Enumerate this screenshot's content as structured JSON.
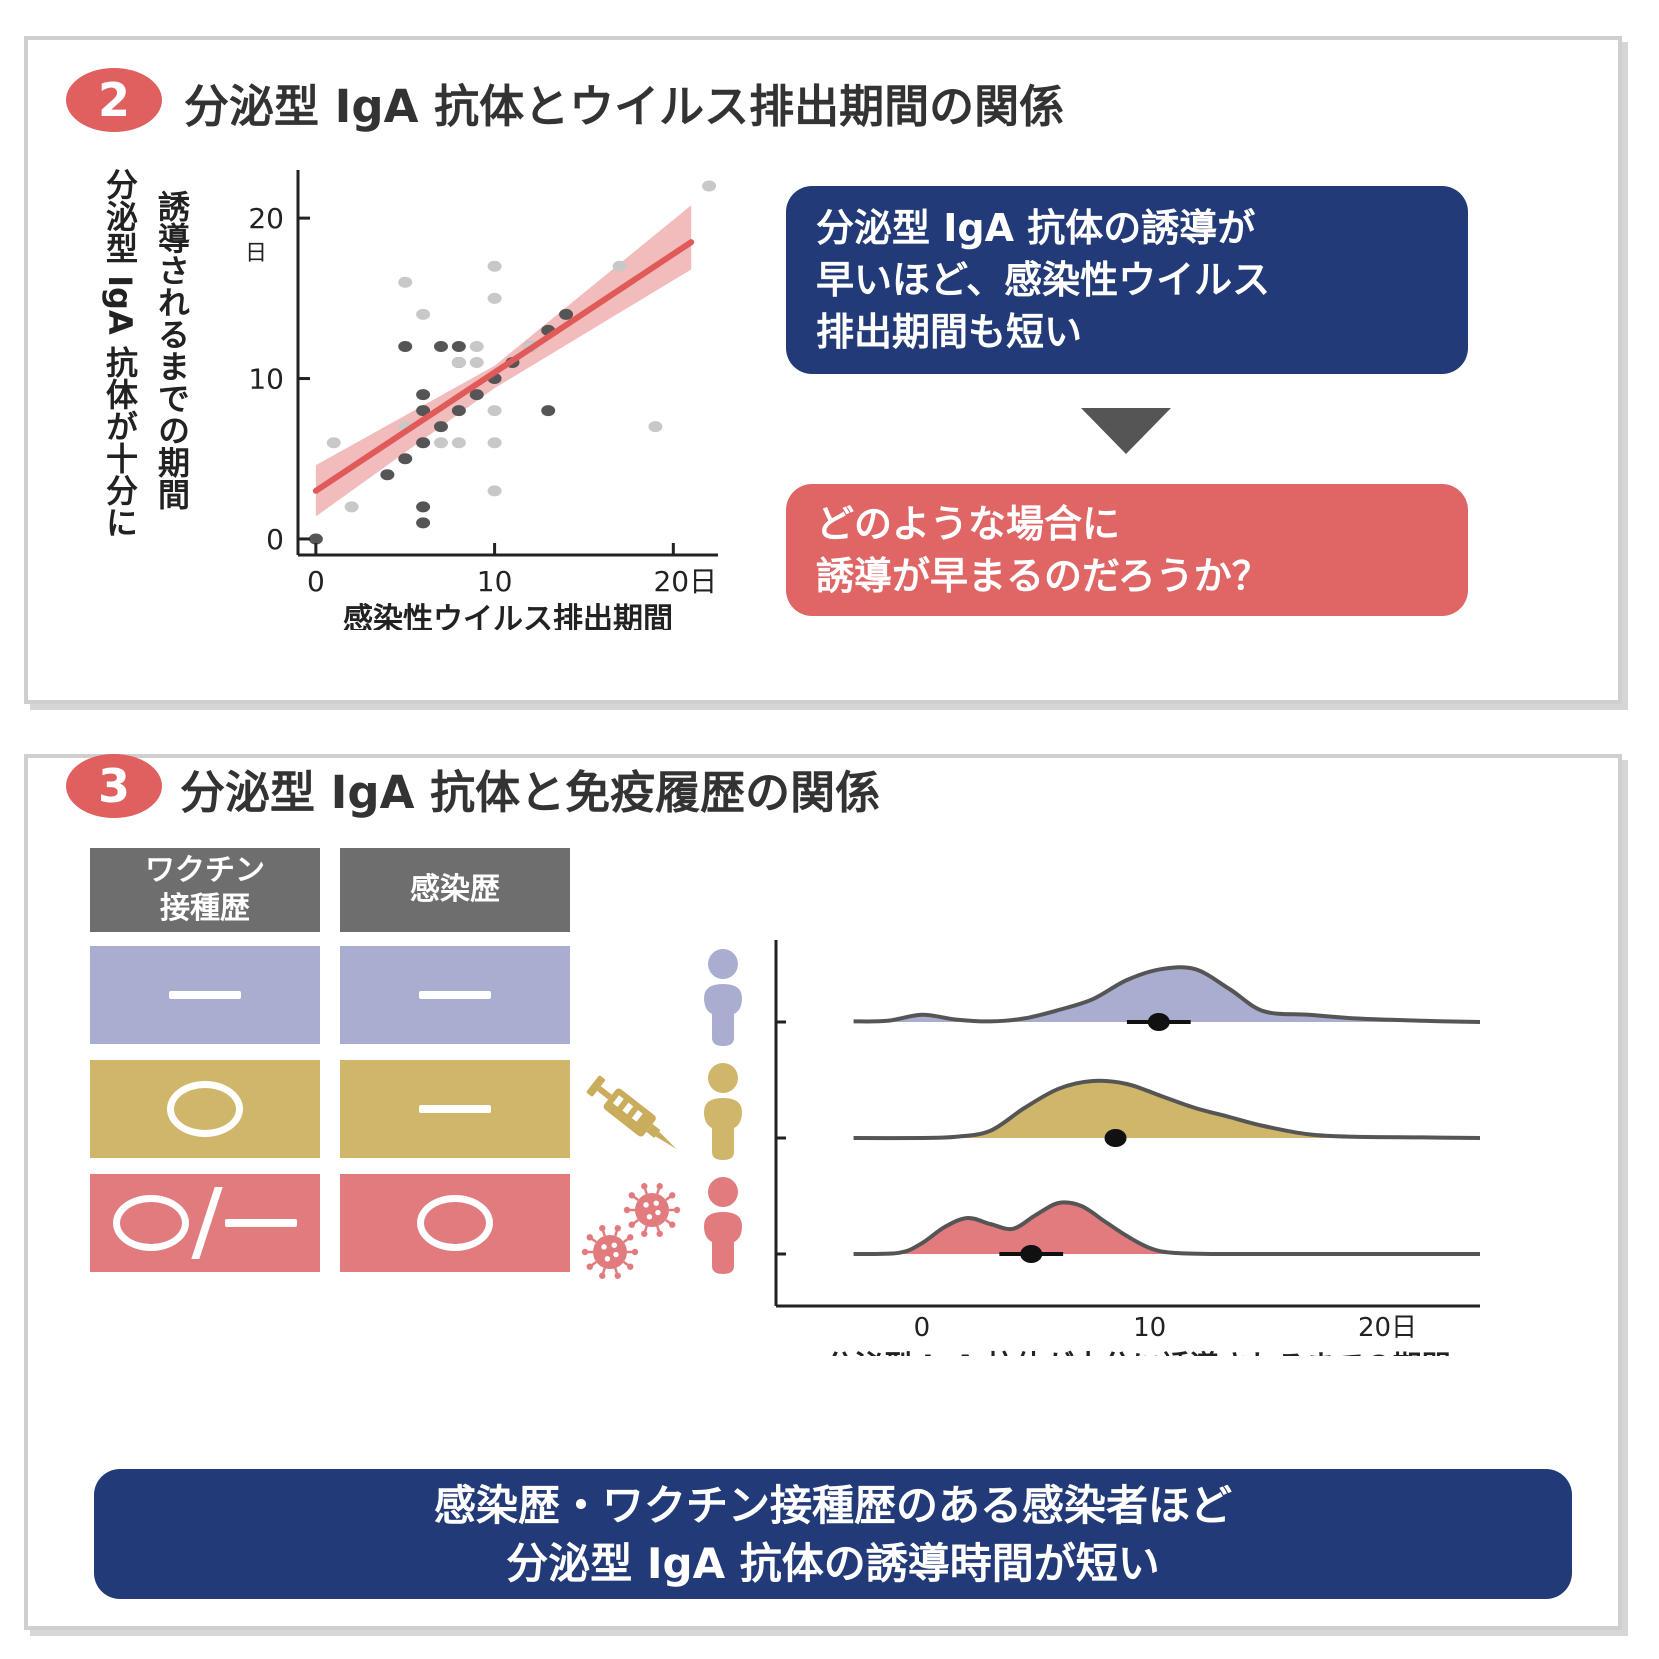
{
  "colors": {
    "badge_red": "#e05f5f",
    "navy": "#223a78",
    "coral": "#e06565",
    "fit_line": "#e05a5a",
    "fit_band": "#f2bcbc",
    "point_dark": "#555555",
    "point_light": "#c8c8c8",
    "none_group": "#a9aed0",
    "vaccine_group": "#cfb66a",
    "infection_group": "#e27b7e",
    "header_gray": "#6e6e6e",
    "arrow_gray": "#555555"
  },
  "panel2": {
    "badge": "2",
    "title": "分泌型 IgA 抗体とウイルス排出期間の関係",
    "ylabel_line1": "分泌型 IgA 抗体が十分に",
    "ylabel_line2": "誘導されるまでの期間",
    "xlabel": "感染性ウイルス排出期間",
    "y_unit": "日",
    "y_ticks": [
      "0",
      "10",
      "20"
    ],
    "x_ticks": [
      "0",
      "10",
      "20日"
    ],
    "message_blue": [
      "分泌型 IgA 抗体の誘導が",
      "早いほど、感染性ウイルス",
      "排出期間も短い"
    ],
    "arrow_icon": "down-triangle-icon",
    "message_red": [
      "どのような場合に",
      "誘導が早まるのだろうか？"
    ]
  },
  "chart_data": [
    {
      "type": "scatter",
      "title": "",
      "xlabel": "感染性ウイルス排出期間",
      "ylabel": "分泌型 IgA 抗体が十分に誘導されるまでの期間",
      "xlim": [
        -1,
        22.5
      ],
      "ylim": [
        -1,
        23
      ],
      "x_ticks": [
        0,
        10,
        20
      ],
      "y_ticks": [
        0,
        10,
        20
      ],
      "grid": false,
      "series": [
        {
          "shade": "dark",
          "points": [
            [
              0,
              0
            ],
            [
              5,
              5
            ],
            [
              6,
              6
            ],
            [
              4,
              4
            ],
            [
              6,
              8
            ],
            [
              6,
              9
            ],
            [
              7,
              7
            ],
            [
              8,
              8
            ],
            [
              9,
              9
            ],
            [
              10,
              10
            ],
            [
              11,
              11
            ],
            [
              12,
              12
            ],
            [
              13,
              13
            ],
            [
              14,
              14
            ],
            [
              5,
              12
            ],
            [
              7,
              12
            ],
            [
              8,
              12
            ],
            [
              13,
              8
            ],
            [
              6,
              2
            ],
            [
              6,
              1
            ],
            [
              8,
              11
            ]
          ]
        },
        {
          "shade": "light",
          "points": [
            [
              1,
              6
            ],
            [
              2,
              2
            ],
            [
              5,
              16
            ],
            [
              6,
              14
            ],
            [
              7,
              6
            ],
            [
              8,
              6
            ],
            [
              8,
              11
            ],
            [
              9,
              12
            ],
            [
              10,
              17
            ],
            [
              10,
              15
            ],
            [
              10,
              8
            ],
            [
              10,
              6
            ],
            [
              10,
              3
            ],
            [
              12,
              12
            ],
            [
              17,
              17
            ],
            [
              19,
              7
            ],
            [
              22,
              22
            ],
            [
              5,
              7
            ],
            [
              9,
              11
            ]
          ]
        }
      ],
      "fit_line": {
        "x": [
          0,
          21
        ],
        "y": [
          3,
          18.5
        ]
      },
      "confidence_band": {
        "x": [
          0,
          10,
          21
        ],
        "lower": [
          1.4,
          9.4,
          16.8
        ],
        "upper": [
          4.6,
          10.8,
          20.8
        ]
      }
    },
    {
      "type": "area",
      "title": "",
      "xlabel": "分泌型 IgA 抗体が十分に誘導されるまでの期間",
      "xlim": [
        -5,
        24.5
      ],
      "x_ticks": [
        "0",
        "10",
        "20日"
      ],
      "x_tick_values": [
        0,
        10,
        20
      ],
      "series": [
        {
          "group": "none",
          "x": [
            -3,
            -1.5,
            0,
            1.5,
            3,
            4.5,
            6,
            7.5,
            9,
            10.5,
            12,
            13.5,
            15,
            17,
            19,
            22,
            24.5
          ],
          "density": [
            0.01,
            0.02,
            0.12,
            0.04,
            0.01,
            0.06,
            0.2,
            0.38,
            0.7,
            0.88,
            0.88,
            0.55,
            0.18,
            0.12,
            0.06,
            0.02,
            0.0
          ],
          "point": 10.4,
          "interval": [
            9.0,
            11.8
          ]
        },
        {
          "group": "vaccine",
          "x": [
            -3,
            0,
            1.5,
            3,
            4.5,
            6,
            7.5,
            9,
            10.5,
            12,
            13.5,
            15,
            17,
            19,
            22,
            24.5
          ],
          "density": [
            0.0,
            0.0,
            0.02,
            0.12,
            0.5,
            0.82,
            0.95,
            0.9,
            0.7,
            0.5,
            0.35,
            0.2,
            0.06,
            0.02,
            0.01,
            0.0
          ],
          "point": 8.5,
          "interval": [
            8.5,
            8.5
          ]
        },
        {
          "group": "infection",
          "x": [
            -3,
            -1,
            0,
            1,
            2,
            3,
            4,
            5,
            6,
            7,
            8,
            9,
            10,
            11,
            13,
            17,
            24.5
          ],
          "density": [
            0.0,
            0.02,
            0.18,
            0.45,
            0.6,
            0.5,
            0.42,
            0.65,
            0.85,
            0.8,
            0.55,
            0.3,
            0.1,
            0.02,
            0.0,
            0.0,
            0.0
          ],
          "point": 4.8,
          "interval": [
            3.4,
            6.2
          ]
        }
      ]
    }
  ],
  "panel3": {
    "badge": "3",
    "title": "分泌型 IgA 抗体と免疫履歴の関係",
    "col_vaccine_line1": "ワクチン",
    "col_vaccine_line2": "接種歴",
    "col_infection": "感染歴",
    "rows": [
      {
        "vaccine": "dash",
        "infection": "dash",
        "icon": "person-icon"
      },
      {
        "vaccine": "circle",
        "infection": "dash",
        "icon": "syringe-icon"
      },
      {
        "vaccine": "circle-slash-dash",
        "infection": "circle",
        "icon": "virus-icon"
      }
    ],
    "xlabel": "分泌型 IgA 抗体が十分に誘導されるまでの期間",
    "conclusion_line1": "感染歴・ワクチン接種歴のある感染者ほど",
    "conclusion_line2": "分泌型 IgA 抗体の誘導時間が短い"
  }
}
